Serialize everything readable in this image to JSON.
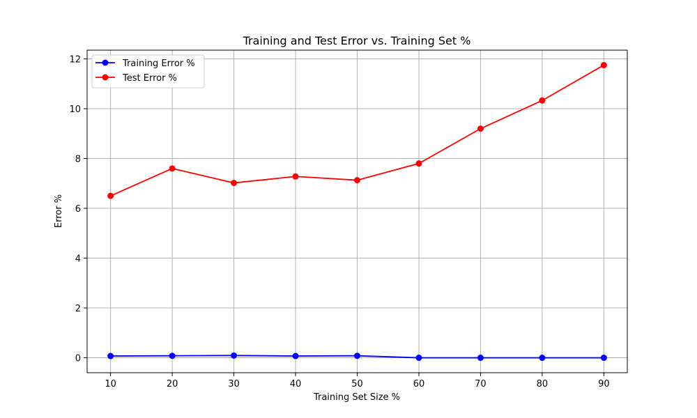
{
  "chart_data": {
    "type": "line",
    "title": "Training and Test Error vs. Training Set %",
    "xlabel": "Training Set Size %",
    "ylabel": "Error %",
    "x": [
      10,
      20,
      30,
      40,
      50,
      60,
      70,
      80,
      90
    ],
    "xlim": [
      6.2,
      93.8
    ],
    "ylim": [
      -0.6,
      12.35
    ],
    "xticks": [
      10,
      20,
      30,
      40,
      50,
      60,
      70,
      80,
      90
    ],
    "yticks": [
      0,
      2,
      4,
      6,
      8,
      10,
      12
    ],
    "grid": true,
    "legend_position": "upper-left",
    "series": [
      {
        "name": "Training Error %",
        "color": "#0000ff",
        "marker": "circle",
        "values": [
          0.07,
          0.08,
          0.09,
          0.07,
          0.08,
          0.0,
          0.0,
          0.0,
          0.0
        ]
      },
      {
        "name": "Test Error %",
        "color": "#ff0000",
        "marker": "circle",
        "values": [
          6.5,
          7.6,
          7.02,
          7.28,
          7.13,
          7.8,
          9.2,
          10.33,
          11.75
        ]
      }
    ]
  }
}
